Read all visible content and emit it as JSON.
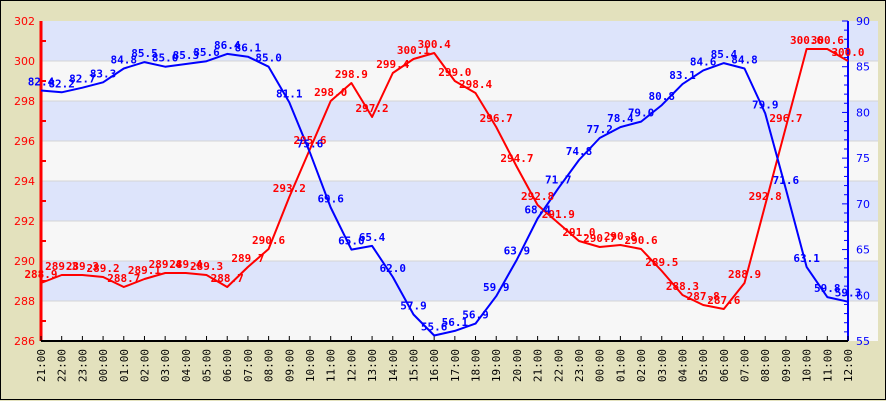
{
  "chart_data": {
    "type": "line",
    "title": "",
    "xlabel": "",
    "ylabel": "",
    "grid": "horizontal bands",
    "legend": "none",
    "x": [
      "21:00",
      "22:00",
      "23:00",
      "00:00",
      "01:00",
      "02:00",
      "03:00",
      "04:00",
      "05:00",
      "06:00",
      "07:00",
      "08:00",
      "09:00",
      "10:00",
      "11:00",
      "12:00",
      "13:00",
      "14:00",
      "15:00",
      "16:00",
      "17:00",
      "18:00",
      "19:00",
      "20:00",
      "21:00",
      "22:00",
      "23:00",
      "00:00",
      "01:00",
      "02:00",
      "03:00",
      "04:00",
      "05:00",
      "06:00",
      "07:00",
      "08:00",
      "09:00",
      "10:00",
      "11:00",
      "12:00"
    ],
    "left_axis": {
      "min": 286,
      "max": 302,
      "major_step": 2,
      "ticks": [
        "286",
        "288",
        "290",
        "292",
        "294",
        "296",
        "298",
        "300",
        "302"
      ],
      "color": "#ff0000"
    },
    "right_axis": {
      "min": 55,
      "max": 90,
      "major_step": 5,
      "ticks": [
        "55",
        "60",
        "65",
        "70",
        "75",
        "80",
        "85",
        "90"
      ],
      "color": "#0000ff"
    },
    "series": [
      {
        "name": "red-series",
        "axis": "left",
        "color": "#ff0000",
        "values": [
          288.9,
          289.3,
          289.3,
          289.2,
          288.7,
          289.1,
          289.4,
          289.4,
          289.3,
          288.7,
          289.7,
          290.6,
          293.2,
          295.6,
          298.0,
          298.9,
          297.2,
          299.4,
          300.1,
          300.4,
          299.0,
          298.4,
          296.7,
          294.7,
          292.8,
          291.9,
          291.0,
          290.7,
          290.8,
          290.6,
          289.5,
          288.3,
          287.8,
          287.6,
          288.9,
          292.8,
          296.7,
          300.6,
          300.6,
          300.0
        ]
      },
      {
        "name": "blue-series",
        "axis": "right",
        "color": "#0000ff",
        "values": [
          82.4,
          82.2,
          82.7,
          83.3,
          84.8,
          85.5,
          85.0,
          85.3,
          85.6,
          86.4,
          86.1,
          85.0,
          81.1,
          75.6,
          69.6,
          65.0,
          65.4,
          62.0,
          57.9,
          55.6,
          56.1,
          56.9,
          59.9,
          63.9,
          68.4,
          71.7,
          74.8,
          77.2,
          78.4,
          79.0,
          80.8,
          83.1,
          84.6,
          85.4,
          84.8,
          79.9,
          71.6,
          63.1,
          59.8,
          59.3
        ]
      }
    ]
  },
  "colors": {
    "background": "#e3e1bd",
    "band_a": "#dde4fb",
    "band_b": "#f7f7f7",
    "band_line": "#d4d4d4"
  }
}
